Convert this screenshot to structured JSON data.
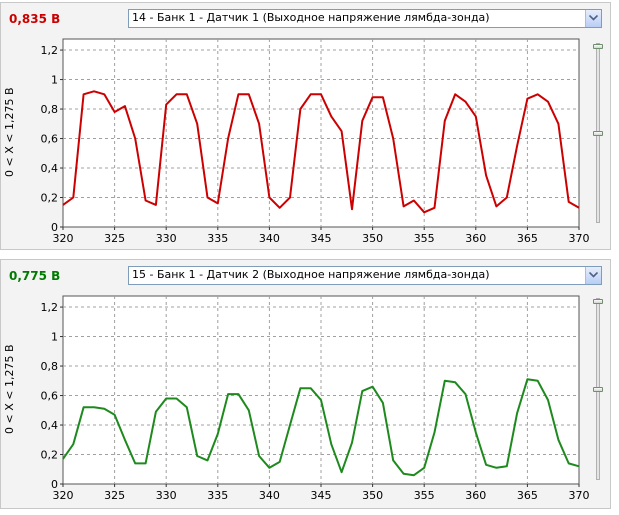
{
  "panels": [
    {
      "reading": "0,835 В",
      "reading_color": "#cc0000",
      "sensor_select": "14 - Банк 1 - Датчик 1 (Выходное напряжение лямбда-зонда)",
      "ylabel": "0 < X < 1,275 В",
      "slider_levels": [
        1.0,
        0.5
      ],
      "chart_data": {
        "type": "line",
        "title": "",
        "xlabel": "",
        "ylabel": "0 < X < 1,275 В",
        "xlim": [
          320,
          370
        ],
        "ylim": [
          0,
          1.275
        ],
        "x_ticks": [
          320,
          325,
          330,
          335,
          340,
          345,
          350,
          355,
          360,
          365,
          370
        ],
        "y_ticks": [
          0,
          0.2,
          0.4,
          0.6,
          0.8,
          1,
          1.2
        ],
        "x_tick_labels": [
          "320",
          "325",
          "330",
          "335",
          "340",
          "345",
          "350",
          "355",
          "360",
          "365",
          "370"
        ],
        "y_tick_labels": [
          "0",
          "0,2",
          "0,4",
          "0,6",
          "0,8",
          "1",
          "1,2"
        ],
        "grid": true,
        "series": [
          {
            "color": "#cc0000",
            "x": [
              320,
              321,
              322,
              323,
              324,
              325,
              326,
              327,
              328,
              329,
              330,
              331,
              332,
              333,
              334,
              335,
              336,
              337,
              338,
              339,
              340,
              341,
              342,
              343,
              344,
              345,
              346,
              347,
              348,
              349,
              350,
              351,
              352,
              353,
              354,
              355,
              356,
              357,
              358,
              359,
              360,
              361,
              362,
              363,
              364,
              365,
              366,
              367,
              368,
              369,
              370
            ],
            "y": [
              0.15,
              0.2,
              0.9,
              0.92,
              0.9,
              0.78,
              0.82,
              0.6,
              0.18,
              0.15,
              0.83,
              0.9,
              0.9,
              0.7,
              0.2,
              0.16,
              0.6,
              0.9,
              0.9,
              0.7,
              0.2,
              0.13,
              0.2,
              0.8,
              0.9,
              0.9,
              0.75,
              0.65,
              0.12,
              0.72,
              0.88,
              0.88,
              0.6,
              0.14,
              0.18,
              0.1,
              0.13,
              0.72,
              0.9,
              0.85,
              0.75,
              0.35,
              0.14,
              0.2,
              0.55,
              0.87,
              0.9,
              0.85,
              0.7,
              0.17,
              0.13
            ]
          }
        ]
      }
    },
    {
      "reading": "0,775 В",
      "reading_color": "#007a00",
      "sensor_select": "15 - Банк 1 - Датчик 2 (Выходное напряжение лямбда-зонда)",
      "ylabel": "0 < X < 1,275 В",
      "slider_levels": [
        1.0,
        0.5
      ],
      "chart_data": {
        "type": "line",
        "title": "",
        "xlabel": "",
        "ylabel": "0 < X < 1,275 В",
        "xlim": [
          320,
          370
        ],
        "ylim": [
          0,
          1.275
        ],
        "x_ticks": [
          320,
          325,
          330,
          335,
          340,
          345,
          350,
          355,
          360,
          365,
          370
        ],
        "y_ticks": [
          0,
          0.2,
          0.4,
          0.6,
          0.8,
          1,
          1.2
        ],
        "x_tick_labels": [
          "320",
          "325",
          "330",
          "335",
          "340",
          "345",
          "350",
          "355",
          "360",
          "365",
          "370"
        ],
        "y_tick_labels": [
          "0",
          "0,2",
          "0,4",
          "0,6",
          "0,8",
          "1",
          "1,2"
        ],
        "grid": true,
        "series": [
          {
            "color": "#1e8a1e",
            "x": [
              320,
              321,
              322,
              323,
              324,
              325,
              326,
              327,
              328,
              329,
              330,
              331,
              332,
              333,
              334,
              335,
              336,
              337,
              338,
              339,
              340,
              341,
              342,
              343,
              344,
              345,
              346,
              347,
              348,
              349,
              350,
              351,
              352,
              353,
              354,
              355,
              356,
              357,
              358,
              359,
              360,
              361,
              362,
              363,
              364,
              365,
              366,
              367,
              368,
              369,
              370
            ],
            "y": [
              0.17,
              0.27,
              0.52,
              0.52,
              0.51,
              0.47,
              0.3,
              0.14,
              0.14,
              0.49,
              0.58,
              0.58,
              0.52,
              0.19,
              0.16,
              0.34,
              0.61,
              0.61,
              0.5,
              0.19,
              0.11,
              0.15,
              0.4,
              0.65,
              0.65,
              0.57,
              0.27,
              0.08,
              0.28,
              0.63,
              0.66,
              0.55,
              0.16,
              0.07,
              0.06,
              0.11,
              0.35,
              0.7,
              0.69,
              0.61,
              0.35,
              0.13,
              0.11,
              0.12,
              0.48,
              0.71,
              0.7,
              0.57,
              0.3,
              0.14,
              0.12
            ]
          }
        ]
      }
    }
  ]
}
